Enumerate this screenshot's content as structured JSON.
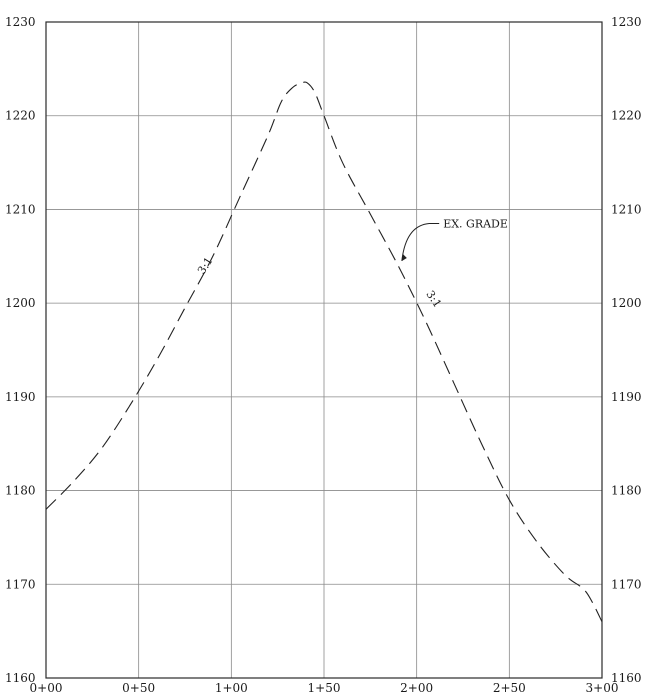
{
  "chart_data": {
    "type": "line",
    "title": "",
    "xlabel": "",
    "ylabel": "",
    "x_ticks": [
      "0+00",
      "0+50",
      "1+00",
      "1+50",
      "2+00",
      "2+50",
      "3+00"
    ],
    "y_ticks": [
      "1160",
      "1170",
      "1180",
      "1190",
      "1200",
      "1210",
      "1220",
      "1230"
    ],
    "xlim": [
      0,
      300
    ],
    "ylim": [
      1160,
      1230
    ],
    "grid": true,
    "series": [
      {
        "name": "",
        "style": "dashed",
        "color": "#222222",
        "x": [
          0,
          15,
          30,
          45,
          60,
          75,
          90,
          105,
          120,
          127,
          133,
          138,
          141,
          145,
          150,
          160,
          175,
          190,
          205,
          220,
          235,
          250,
          265,
          280,
          290,
          295,
          300
        ],
        "y": [
          1178,
          1181,
          1184.5,
          1189,
          1194,
          1199.5,
          1205,
          1211.5,
          1218,
          1221.5,
          1223,
          1223.5,
          1223.5,
          1222.5,
          1220,
          1215,
          1209.5,
          1204,
          1198,
          1191.5,
          1185,
          1179,
          1174.5,
          1171,
          1169.5,
          1168,
          1166
        ]
      }
    ],
    "annotations": [
      {
        "text": "3:1",
        "x": 85,
        "y": 1203
      },
      {
        "text": "3:1",
        "x": 205,
        "y": 1201
      },
      {
        "text": "EX. GRADE",
        "x": 210,
        "y": 1208.5,
        "arrow_to_x": 192,
        "arrow_to_y": 1204.5
      }
    ]
  }
}
